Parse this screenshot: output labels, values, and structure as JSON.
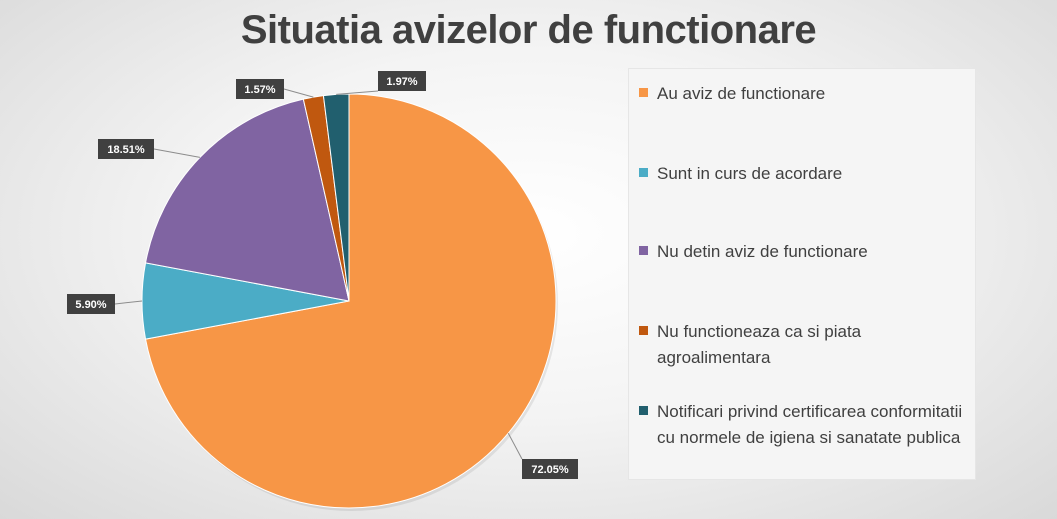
{
  "chart_data": {
    "type": "pie",
    "title": "Situatia avizelor de functionare",
    "legend_position": "right",
    "slices": [
      {
        "name": "Au aviz de functionare",
        "value": 72.05,
        "label": "72.05%",
        "color": "#F79646"
      },
      {
        "name": "Sunt in curs de acordare",
        "value": 5.9,
        "label": "5.90%",
        "color": "#4BACC6"
      },
      {
        "name": "Nu detin aviz de functionare",
        "value": 18.51,
        "label": "18.51%",
        "color": "#8064A2"
      },
      {
        "name": "Nu functioneaza ca si piata agroalimentara",
        "value": 1.57,
        "label": "1.57%",
        "color": "#C0580F"
      },
      {
        "name": "Notificari privind certificarea conformitatii cu normele de igiena si sanatate publica",
        "value": 1.97,
        "label": "1.97%",
        "color": "#215F6E"
      }
    ]
  }
}
